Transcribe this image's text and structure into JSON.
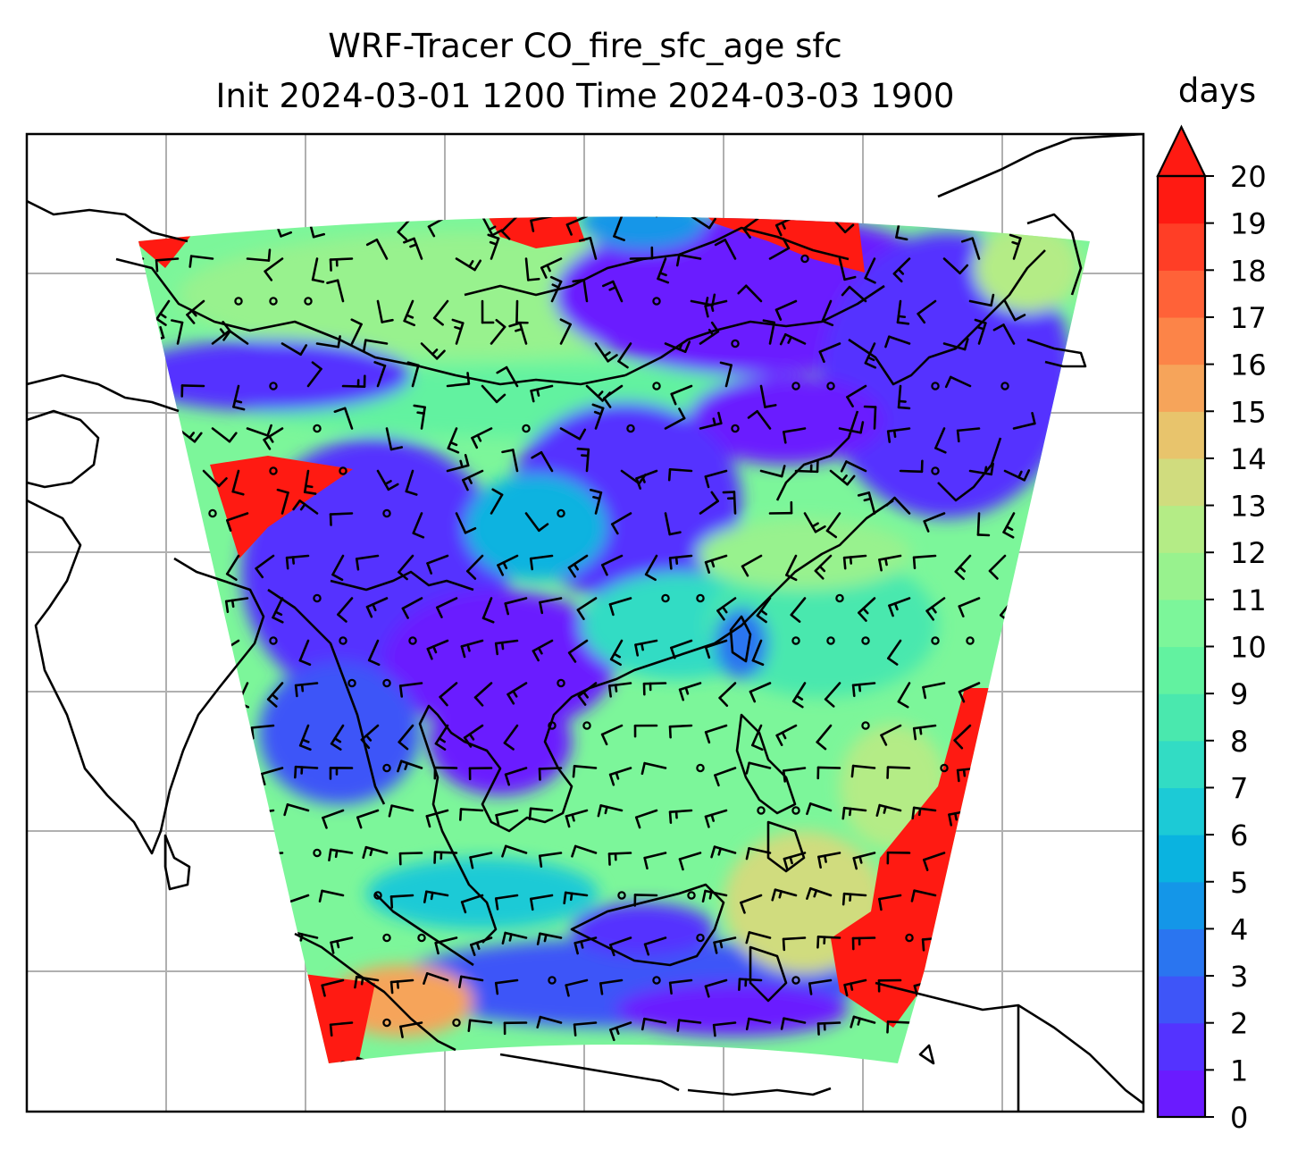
{
  "title": {
    "line1": "WRF-Tracer CO_fire_sfc_age sfc",
    "line2": "Init 2024-03-01 1200 Time 2024-03-03 1900"
  },
  "colorbar": {
    "units": "days",
    "ticks": [
      "0",
      "1",
      "2",
      "3",
      "4",
      "5",
      "6",
      "7",
      "8",
      "9",
      "10",
      "11",
      "12",
      "13",
      "14",
      "15",
      "16",
      "17",
      "18",
      "19",
      "20"
    ],
    "min": 0,
    "max": 20,
    "extend": "max",
    "colors": [
      "#6a1bff",
      "#5433ff",
      "#3e55f8",
      "#2a75f0",
      "#1496e8",
      "#0ab3e0",
      "#1ccad6",
      "#32dcc4",
      "#4ae8ae",
      "#62f2a0",
      "#7cf69a",
      "#98f28e",
      "#b4ec86",
      "#d0dc7e",
      "#e8c46c",
      "#f6a45a",
      "#fc8448",
      "#ff6238",
      "#ff3e26",
      "#ff1a12"
    ],
    "over_color": "#ff1a12"
  },
  "map": {
    "field": "CO_fire_sfc_age",
    "level": "sfc",
    "gridlines": true,
    "overlay": "wind-barbs",
    "coastlines": true
  }
}
